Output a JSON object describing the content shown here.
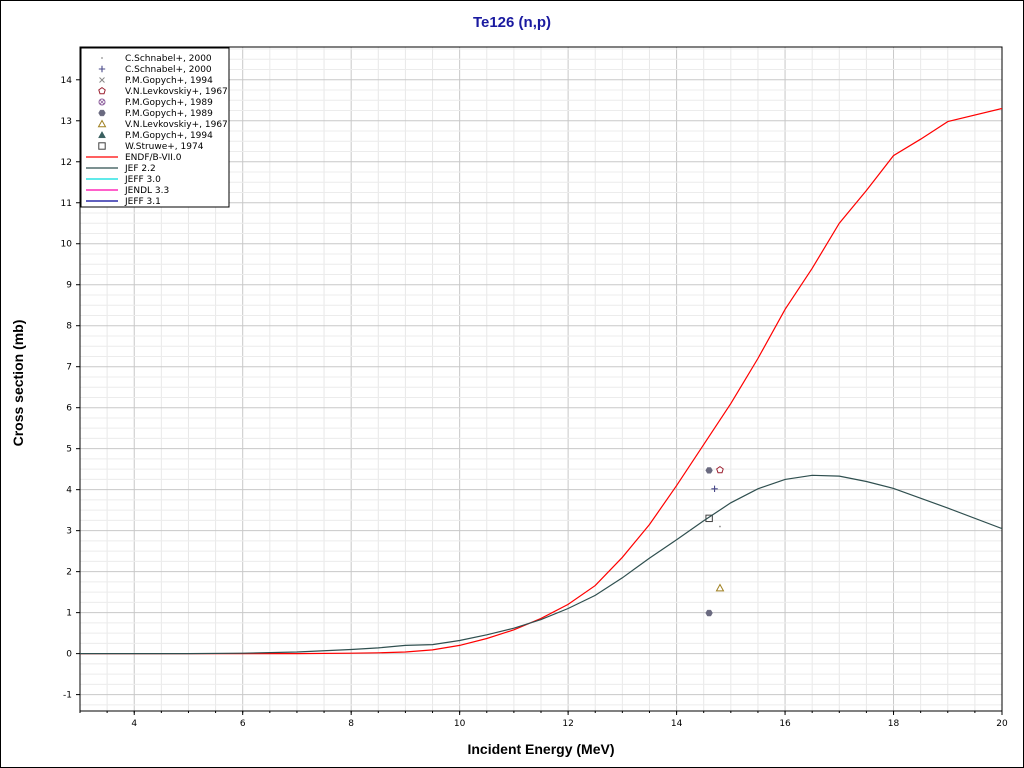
{
  "chart_data": {
    "type": "line",
    "title": "Te126 (n,p)",
    "xlabel": "Incident Energy (MeV)",
    "ylabel": "Cross section (mb)",
    "xlim": [
      3,
      20
    ],
    "ylim": [
      -1.4,
      14.8
    ],
    "xticks": [
      4,
      6,
      8,
      10,
      12,
      14,
      16,
      18,
      20
    ],
    "yticks": [
      -1,
      0,
      1,
      2,
      3,
      4,
      5,
      6,
      7,
      8,
      9,
      10,
      11,
      12,
      13,
      14
    ],
    "grid": true,
    "legend_position": "top-left",
    "series": [
      {
        "name": "C.Schnabel+, 2000",
        "kind": "marker",
        "marker": "dot",
        "color": "#909090",
        "points": [
          [
            14.8,
            3.1
          ]
        ]
      },
      {
        "name": "C.Schnabel+, 2000",
        "kind": "marker",
        "marker": "plus",
        "color": "#4a4a8a",
        "points": [
          [
            14.7,
            4.02
          ]
        ]
      },
      {
        "name": "P.M.Gopych+, 1994",
        "kind": "marker",
        "marker": "cross",
        "color": "#888888",
        "points": []
      },
      {
        "name": "V.N.Levkovskiy+, 1967",
        "kind": "marker",
        "marker": "pentagon-open",
        "color": "#9b2030",
        "points": [
          [
            14.8,
            4.48
          ]
        ]
      },
      {
        "name": "P.M.Gopych+, 1989",
        "kind": "marker",
        "marker": "circle-cross",
        "color": "#8a5a9a",
        "points": []
      },
      {
        "name": "P.M.Gopych+, 1989",
        "kind": "marker",
        "marker": "hexagon-filled",
        "color": "#6a6a80",
        "points": [
          [
            14.6,
            4.47
          ],
          [
            14.6,
            0.99
          ]
        ]
      },
      {
        "name": "V.N.Levkovskiy+, 1967",
        "kind": "marker",
        "marker": "triangle-open",
        "color": "#a08020",
        "points": [
          [
            14.8,
            1.6
          ]
        ]
      },
      {
        "name": "P.M.Gopych+, 1994",
        "kind": "marker",
        "marker": "triangle-filled",
        "color": "#3a6060",
        "points": []
      },
      {
        "name": "W.Struwe+, 1974",
        "kind": "marker",
        "marker": "square-open",
        "color": "#404040",
        "points": [
          [
            14.6,
            3.3
          ]
        ]
      },
      {
        "name": "ENDF/B-VII.0",
        "kind": "line",
        "color": "#ff0000",
        "points": [
          [
            3,
            0
          ],
          [
            5,
            0
          ],
          [
            6,
            0
          ],
          [
            7,
            0
          ],
          [
            8,
            0.01
          ],
          [
            8.5,
            0.02
          ],
          [
            9,
            0.04
          ],
          [
            9.5,
            0.09
          ],
          [
            10,
            0.2
          ],
          [
            10.5,
            0.37
          ],
          [
            11,
            0.58
          ],
          [
            11.5,
            0.86
          ],
          [
            12,
            1.2
          ],
          [
            12.5,
            1.66
          ],
          [
            13,
            2.35
          ],
          [
            13.5,
            3.15
          ],
          [
            14,
            4.1
          ],
          [
            14.5,
            5.1
          ],
          [
            15,
            6.1
          ],
          [
            15.5,
            7.2
          ],
          [
            16,
            8.4
          ],
          [
            16.5,
            9.4
          ],
          [
            17,
            10.5
          ],
          [
            17.5,
            11.3
          ],
          [
            18,
            12.15
          ],
          [
            18.5,
            12.55
          ],
          [
            19,
            12.98
          ],
          [
            20,
            13.3
          ]
        ]
      },
      {
        "name": "JEF 2.2",
        "kind": "line",
        "color": "#2f4f4f",
        "points": [
          [
            3,
            0
          ],
          [
            5,
            0
          ],
          [
            6,
            0.01
          ],
          [
            7,
            0.04
          ],
          [
            8,
            0.1
          ],
          [
            8.5,
            0.14
          ],
          [
            9,
            0.2
          ],
          [
            9.5,
            0.22
          ],
          [
            10,
            0.32
          ],
          [
            10.5,
            0.46
          ],
          [
            11,
            0.62
          ],
          [
            11.5,
            0.83
          ],
          [
            12,
            1.1
          ],
          [
            12.5,
            1.42
          ],
          [
            13,
            1.85
          ],
          [
            13.5,
            2.33
          ],
          [
            14,
            2.78
          ],
          [
            14.5,
            3.24
          ],
          [
            15,
            3.68
          ],
          [
            15.5,
            4.02
          ],
          [
            16,
            4.25
          ],
          [
            16.5,
            4.35
          ],
          [
            17,
            4.33
          ],
          [
            17.5,
            4.2
          ],
          [
            18,
            4.03
          ],
          [
            19,
            3.55
          ],
          [
            20,
            3.05
          ]
        ]
      },
      {
        "name": "JEFF 3.0",
        "kind": "line",
        "color": "#00dddd",
        "points": []
      },
      {
        "name": "JENDL 3.3",
        "kind": "line",
        "color": "#ff00aa",
        "points": []
      },
      {
        "name": "JEFF 3.1",
        "kind": "line",
        "color": "#000099",
        "points": []
      }
    ]
  }
}
